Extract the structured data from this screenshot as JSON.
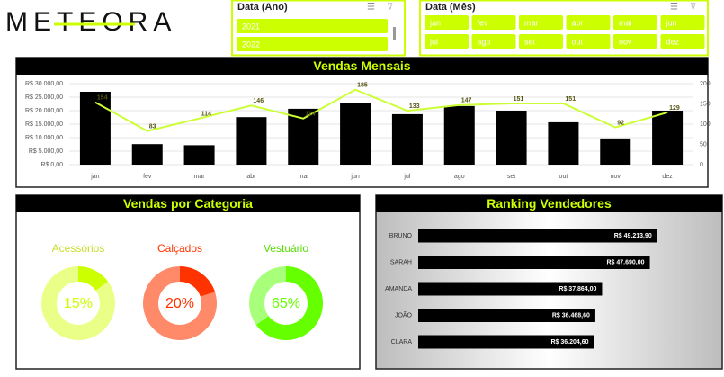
{
  "logo": "METEORA",
  "slicers": [
    {
      "title": "Data (Ano)",
      "items": [
        "2021",
        "2022"
      ]
    },
    {
      "title": "Data (Mês)",
      "items": [
        "jan",
        "fev",
        "mar",
        "abr",
        "mai",
        "jun",
        "jul",
        "ago",
        "set",
        "out",
        "nov",
        "dez"
      ]
    }
  ],
  "chart_data": [
    {
      "type": "bar_line",
      "title": "Vendas Mensais",
      "categories": [
        "jan",
        "fev",
        "mar",
        "abr",
        "mai",
        "jun",
        "jul",
        "ago",
        "set",
        "out",
        "nov",
        "dez"
      ],
      "series": [
        {
          "type": "bar",
          "color": "#000000",
          "values": [
            27000,
            7600,
            7200,
            17600,
            20700,
            22700,
            18700,
            21700,
            20000,
            15700,
            9700,
            20000
          ]
        },
        {
          "type": "line",
          "color": "#ccff33",
          "axis": "y2",
          "values": [
            154,
            83,
            114,
            146,
            114,
            185,
            133,
            147,
            151,
            151,
            92,
            129
          ]
        }
      ],
      "ylim": [
        0,
        30000
      ],
      "yticks": [
        {
          "value": 0,
          "label": "R$ 0,00"
        },
        {
          "value": 5000,
          "label": "R$ 5.000,00"
        },
        {
          "value": 10000,
          "label": "R$ 10.000,00"
        },
        {
          "value": 15000,
          "label": "R$ 15.000,00"
        },
        {
          "value": 20000,
          "label": "R$ 20.000,00"
        },
        {
          "value": 25000,
          "label": "R$ 25.000,00"
        },
        {
          "value": 30000,
          "label": "R$ 30.000,00"
        }
      ],
      "y2lim": [
        0,
        200
      ],
      "y2ticks": [
        0,
        50,
        100,
        150,
        200
      ],
      "grid": true
    },
    {
      "type": "donut",
      "title": "Vendas por Categoria",
      "categories": [
        "Acessórios",
        "Calçados",
        "Vestuário"
      ],
      "values": [
        15,
        20,
        65
      ],
      "value_labels": [
        "15%",
        "20%",
        "65%"
      ],
      "colors": [
        "#ccff00",
        "#ff3300",
        "#66ff00"
      ],
      "track_colors": [
        "#eaff88",
        "#ff8a6a",
        "#a8ff7a"
      ],
      "label_colors": [
        "#c8dc2a",
        "#ff3300",
        "#55dd00"
      ]
    },
    {
      "type": "hbar",
      "title": "Ranking Vendedores",
      "categories": [
        "BRUNO",
        "SARAH",
        "AMANDA",
        "JOÃO",
        "CLARA"
      ],
      "values": [
        49213.9,
        47690,
        37864,
        36468.6,
        36204.6
      ],
      "value_labels": [
        "R$ 49.213,90",
        "R$ 47.690,00",
        "R$ 37.864,00",
        "R$ 36.468,60",
        "R$ 36.204,60"
      ],
      "color": "#000000",
      "xlim": [
        0,
        55000
      ]
    }
  ]
}
